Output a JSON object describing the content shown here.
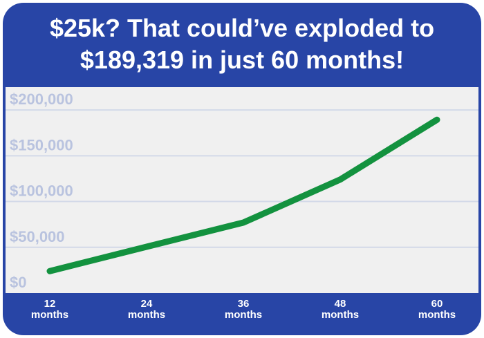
{
  "chart_data": {
    "type": "line",
    "title": "$25k? That could’ve exploded to $189,319 in just 60 months!",
    "categories": [
      "12 months",
      "24 months",
      "36 months",
      "48 months",
      "60 months"
    ],
    "values": [
      24000,
      50600,
      77000,
      124000,
      189319
    ],
    "color": "#13923f",
    "ylim": [
      0,
      225000
    ],
    "yticks": [
      {
        "value": 0,
        "label": "$0"
      },
      {
        "value": 50000,
        "label": "$50,000"
      },
      {
        "value": 100000,
        "label": "$100,000"
      },
      {
        "value": 150000,
        "label": "$150,000"
      },
      {
        "value": 200000,
        "label": "$200,000"
      }
    ],
    "grid": true
  }
}
